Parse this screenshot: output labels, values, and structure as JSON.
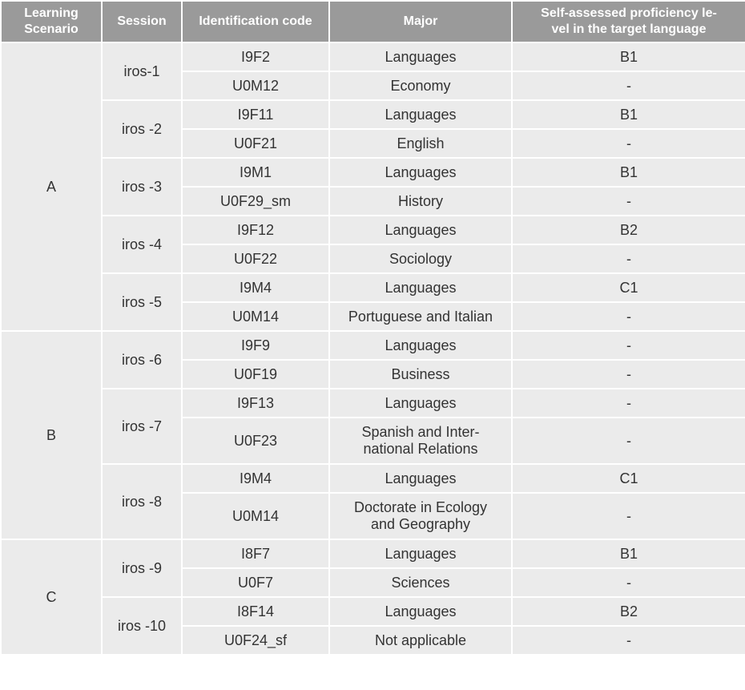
{
  "header": [
    "Learning\nScenario",
    "Session",
    "Identification code",
    "Major",
    "Self-assessed proficiency le-\nvel in the target language"
  ],
  "scenarios": [
    {
      "label": "A",
      "sessions": [
        {
          "label": "iros-1",
          "participants": [
            {
              "code": "I9F2",
              "major": "Languages",
              "level": "B1"
            },
            {
              "code": "U0M12",
              "major": "Economy",
              "level": "-"
            }
          ]
        },
        {
          "label": "iros -2",
          "participants": [
            {
              "code": "I9F11",
              "major": "Languages",
              "level": "B1"
            },
            {
              "code": "U0F21",
              "major": "English",
              "level": "-"
            }
          ]
        },
        {
          "label": "iros -3",
          "participants": [
            {
              "code": "I9M1",
              "major": "Languages",
              "level": "B1"
            },
            {
              "code": "U0F29_sm",
              "major": "History",
              "level": "-"
            }
          ]
        },
        {
          "label": "iros -4",
          "participants": [
            {
              "code": "I9F12",
              "major": "Languages",
              "level": "B2"
            },
            {
              "code": "U0F22",
              "major": "Sociology",
              "level": "-"
            }
          ]
        },
        {
          "label": "iros -5",
          "participants": [
            {
              "code": "I9M4",
              "major": "Languages",
              "level": "C1"
            },
            {
              "code": "U0M14",
              "major": "Portuguese and Italian",
              "level": "-"
            }
          ]
        }
      ]
    },
    {
      "label": "B",
      "sessions": [
        {
          "label": "iros -6",
          "participants": [
            {
              "code": "I9F9",
              "major": "Languages",
              "level": "-"
            },
            {
              "code": "U0F19",
              "major": "Business",
              "level": "-"
            }
          ]
        },
        {
          "label": "iros -7",
          "participants": [
            {
              "code": "I9F13",
              "major": "Languages",
              "level": "-"
            },
            {
              "code": "U0F23",
              "major": "Spanish and Inter-\nnational Relations",
              "level": "-"
            }
          ]
        },
        {
          "label": "iros -8",
          "participants": [
            {
              "code": "I9M4",
              "major": "Languages",
              "level": "C1"
            },
            {
              "code": "U0M14",
              "major": "Doctorate in Ecology\nand Geography",
              "level": "-"
            }
          ]
        }
      ]
    },
    {
      "label": "C",
      "sessions": [
        {
          "label": "iros -9",
          "participants": [
            {
              "code": "I8F7",
              "major": "Languages",
              "level": "B1"
            },
            {
              "code": "U0F7",
              "major": "Sciences",
              "level": "-"
            }
          ]
        },
        {
          "label": "iros -10",
          "participants": [
            {
              "code": "I8F14",
              "major": "Languages",
              "level": "B2"
            },
            {
              "code": "U0F24_sf",
              "major": "Not applicable",
              "level": "-"
            }
          ]
        }
      ]
    }
  ]
}
